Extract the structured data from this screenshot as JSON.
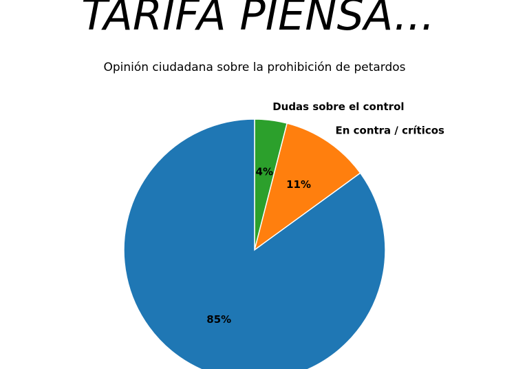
{
  "chart_data": {
    "type": "pie",
    "title": "TARIFA PIENSA...",
    "subtitle": "Opinión ciudadana sobre la prohibición de petardos",
    "categories": [
      "Dudas sobre el control",
      "En contra / críticos",
      null
    ],
    "values": [
      4,
      11,
      85
    ],
    "value_labels": [
      "4%",
      "11%",
      "85%"
    ],
    "colors": [
      "#2ca02c",
      "#ff7f0e",
      "#1f77b4"
    ]
  }
}
